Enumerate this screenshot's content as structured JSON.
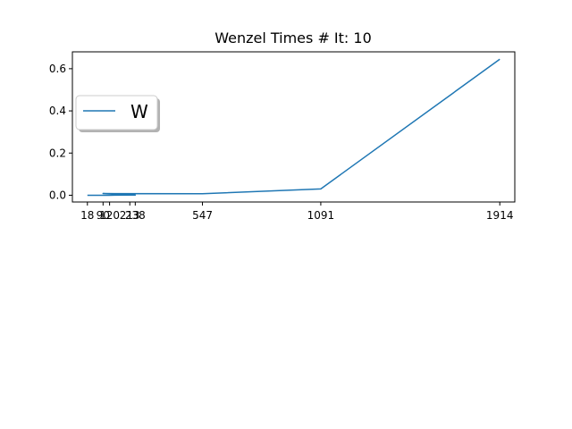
{
  "chart_data": {
    "type": "line",
    "title": "Wenzel Times # It: 10",
    "xlabel": "",
    "ylabel": "",
    "x_ticks": [
      18,
      90,
      120,
      213,
      238,
      547,
      1091,
      1914
    ],
    "x_tick_labels": [
      "18",
      "90",
      "120",
      "213",
      "238",
      "547",
      "1091",
      "1914"
    ],
    "y_ticks": [
      0.0,
      0.2,
      0.4,
      0.6
    ],
    "y_tick_labels": [
      "0.0",
      "0.2",
      "0.4",
      "0.6"
    ],
    "xlim": [
      -51,
      1983
    ],
    "ylim": [
      -0.032,
      0.68
    ],
    "grid": false,
    "legend_position": "upper-left",
    "series": [
      {
        "name": "W",
        "color": "#1f77b4",
        "x": [
          18,
          90,
          120,
          213,
          238,
          90,
          547,
          1091,
          1914
        ],
        "y": [
          0.0,
          0.0,
          0.0,
          0.001,
          0.001,
          0.008,
          0.007,
          0.03,
          0.645
        ]
      }
    ]
  }
}
